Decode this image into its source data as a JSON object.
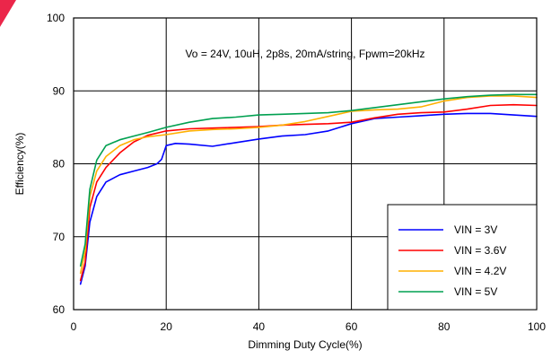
{
  "chart_data": {
    "type": "line",
    "annotation": "Vo = 24V, 10uH, 2p8s, 20mA/string, Fpwm=20kHz",
    "xlabel": "Dimming Duty Cycle(%)",
    "ylabel": "Efficiency(%)",
    "xlim": [
      0,
      100
    ],
    "ylim": [
      60,
      100
    ],
    "x_ticks": [
      0,
      20,
      40,
      60,
      80,
      100
    ],
    "y_ticks": [
      60,
      70,
      80,
      90,
      100
    ],
    "grid": "major",
    "legend_position": "bottom-right",
    "series": [
      {
        "name": "VIN = 3V",
        "color": "#0000ff",
        "x": [
          1.5,
          2.5,
          3.5,
          5,
          7,
          10,
          13,
          16,
          18,
          19,
          20,
          22,
          25,
          30,
          35,
          40,
          45,
          50,
          55,
          60,
          65,
          70,
          75,
          80,
          85,
          90,
          95,
          100
        ],
        "y": [
          63.5,
          66,
          72,
          75.5,
          77.5,
          78.5,
          79,
          79.5,
          80,
          80.6,
          82.5,
          82.8,
          82.7,
          82.4,
          82.9,
          83.4,
          83.8,
          84,
          84.5,
          85.5,
          86.2,
          86.4,
          86.6,
          86.8,
          86.9,
          86.9,
          86.7,
          86.5
        ]
      },
      {
        "name": "VIN = 3.6V",
        "color": "#ff0000",
        "x": [
          1.5,
          2.5,
          3.5,
          5,
          7,
          10,
          13,
          16,
          20,
          25,
          30,
          35,
          40,
          45,
          50,
          55,
          60,
          65,
          70,
          75,
          80,
          85,
          90,
          95,
          100
        ],
        "y": [
          64,
          66.5,
          74,
          77.5,
          79.5,
          81.5,
          83,
          83.9,
          84.5,
          84.8,
          84.9,
          85,
          85.1,
          85.3,
          85.4,
          85.5,
          85.7,
          86.3,
          86.8,
          87,
          87.1,
          87.5,
          88,
          88.1,
          88
        ]
      },
      {
        "name": "VIN = 4.2V",
        "color": "#ffb000",
        "x": [
          1.5,
          2.5,
          3.5,
          5,
          7,
          10,
          13,
          16,
          20,
          25,
          30,
          35,
          40,
          45,
          50,
          55,
          60,
          65,
          70,
          75,
          80,
          85,
          90,
          95,
          100
        ],
        "y": [
          65,
          68,
          75.5,
          79,
          81,
          82.5,
          83.3,
          83.7,
          84,
          84.5,
          84.7,
          84.8,
          85,
          85.3,
          85.8,
          86.5,
          87.2,
          87.4,
          87.5,
          87.8,
          88.6,
          89.1,
          89.3,
          89.3,
          89.1
        ]
      },
      {
        "name": "VIN = 5V",
        "color": "#00a050",
        "x": [
          1.5,
          2.5,
          3.5,
          5,
          7,
          10,
          13,
          16,
          20,
          25,
          30,
          35,
          40,
          45,
          50,
          55,
          60,
          65,
          70,
          75,
          80,
          85,
          90,
          95,
          100
        ],
        "y": [
          66,
          69,
          76.5,
          80.5,
          82.5,
          83.3,
          83.8,
          84.3,
          85,
          85.7,
          86.2,
          86.4,
          86.7,
          86.8,
          86.9,
          87,
          87.3,
          87.7,
          88.1,
          88.5,
          88.9,
          89.2,
          89.4,
          89.5,
          89.5
        ]
      }
    ]
  }
}
